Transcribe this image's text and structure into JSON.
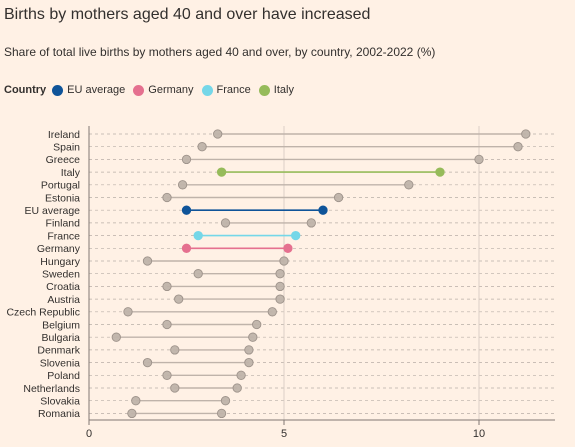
{
  "title": "Births by mothers aged 40 and over have increased",
  "subtitle": "Share of total live births by mothers aged 40 and over, by country, 2002-2022 (%)",
  "legend": {
    "title": "Country",
    "items": [
      {
        "label": "EU average",
        "color": "#0f5499"
      },
      {
        "label": "Germany",
        "color": "#e5708f"
      },
      {
        "label": "France",
        "color": "#75d7e8"
      },
      {
        "label": "Italy",
        "color": "#96bb5a"
      }
    ]
  },
  "colors": {
    "default_dot": "#bfb3aa",
    "default_dot_stroke": "#9e938b",
    "default_line": "#bfb3aa",
    "grid": "#b8aea6",
    "axis": "#807873"
  },
  "chart_data": {
    "type": "dumbbell",
    "xlim": [
      0,
      12
    ],
    "xticks": [
      0,
      5,
      10
    ],
    "categories": [
      "Ireland",
      "Spain",
      "Greece",
      "Italy",
      "Portugal",
      "Estonia",
      "EU average",
      "Finland",
      "France",
      "Germany",
      "Hungary",
      "Sweden",
      "Croatia",
      "Austria",
      "Czech Republic",
      "Belgium",
      "Bulgaria",
      "Denmark",
      "Slovenia",
      "Poland",
      "Netherlands",
      "Slovakia",
      "Romania"
    ],
    "series": [
      {
        "name": "2002",
        "values": [
          3.3,
          2.9,
          2.5,
          3.4,
          2.4,
          2.0,
          2.5,
          3.5,
          2.8,
          2.5,
          1.5,
          2.8,
          2.0,
          2.3,
          1.0,
          2.0,
          0.7,
          2.2,
          1.5,
          2.0,
          2.2,
          1.2,
          1.1
        ]
      },
      {
        "name": "2022",
        "values": [
          11.2,
          11.0,
          10.0,
          9.0,
          8.2,
          6.4,
          6.0,
          5.7,
          5.3,
          5.1,
          5.0,
          4.9,
          4.9,
          4.9,
          4.7,
          4.3,
          4.2,
          4.1,
          4.1,
          3.9,
          3.8,
          3.5,
          3.4
        ]
      }
    ]
  }
}
